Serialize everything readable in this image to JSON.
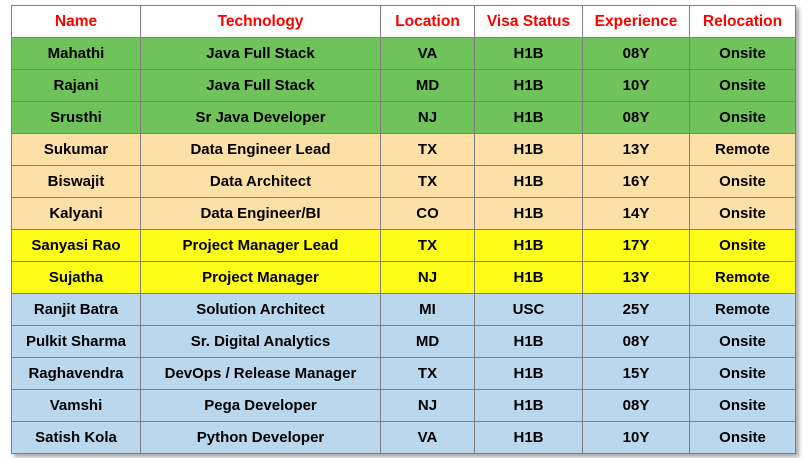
{
  "header_color": "#ff0000",
  "headers": [
    "Name",
    "Technology",
    "Location",
    "Visa Status",
    "Experience",
    "Relocation"
  ],
  "group_colors": {
    "green": "#6fc35a",
    "peach": "#fde0a6",
    "yellow": "#fdfd17",
    "blue": "#bad7ee"
  },
  "rows": [
    {
      "group": "green",
      "cells": [
        "Mahathi",
        "Java Full Stack",
        "VA",
        "H1B",
        "08Y",
        "Onsite"
      ]
    },
    {
      "group": "green",
      "cells": [
        "Rajani",
        "Java Full Stack",
        "MD",
        "H1B",
        "10Y",
        "Onsite"
      ]
    },
    {
      "group": "green",
      "cells": [
        "Srusthi",
        "Sr Java Developer",
        "NJ",
        "H1B",
        "08Y",
        "Onsite"
      ]
    },
    {
      "group": "peach",
      "cells": [
        "Sukumar",
        "Data Engineer Lead",
        "TX",
        "H1B",
        "13Y",
        "Remote"
      ]
    },
    {
      "group": "peach",
      "cells": [
        "Biswajit",
        "Data Architect",
        "TX",
        "H1B",
        "16Y",
        "Onsite"
      ]
    },
    {
      "group": "peach",
      "cells": [
        "Kalyani",
        "Data Engineer/BI",
        "CO",
        "H1B",
        "14Y",
        "Onsite"
      ]
    },
    {
      "group": "yellow",
      "cells": [
        "Sanyasi Rao",
        "Project Manager Lead",
        "TX",
        "H1B",
        "17Y",
        "Onsite"
      ]
    },
    {
      "group": "yellow",
      "cells": [
        "Sujatha",
        "Project Manager",
        "NJ",
        "H1B",
        "13Y",
        "Remote"
      ]
    },
    {
      "group": "blue",
      "cells": [
        "Ranjit Batra",
        "Solution Architect",
        "MI",
        "USC",
        "25Y",
        "Remote"
      ]
    },
    {
      "group": "blue",
      "cells": [
        "Pulkit Sharma",
        "Sr. Digital Analytics",
        "MD",
        "H1B",
        "08Y",
        "Onsite"
      ]
    },
    {
      "group": "blue",
      "cells": [
        "Raghavendra",
        "DevOps / Release Manager",
        "TX",
        "H1B",
        "15Y",
        "Onsite"
      ]
    },
    {
      "group": "blue",
      "cells": [
        "Vamshi",
        "Pega Developer",
        "NJ",
        "H1B",
        "08Y",
        "Onsite"
      ]
    },
    {
      "group": "blue",
      "cells": [
        "Satish Kola",
        "Python Developer",
        "VA",
        "H1B",
        "10Y",
        "Onsite"
      ]
    }
  ]
}
